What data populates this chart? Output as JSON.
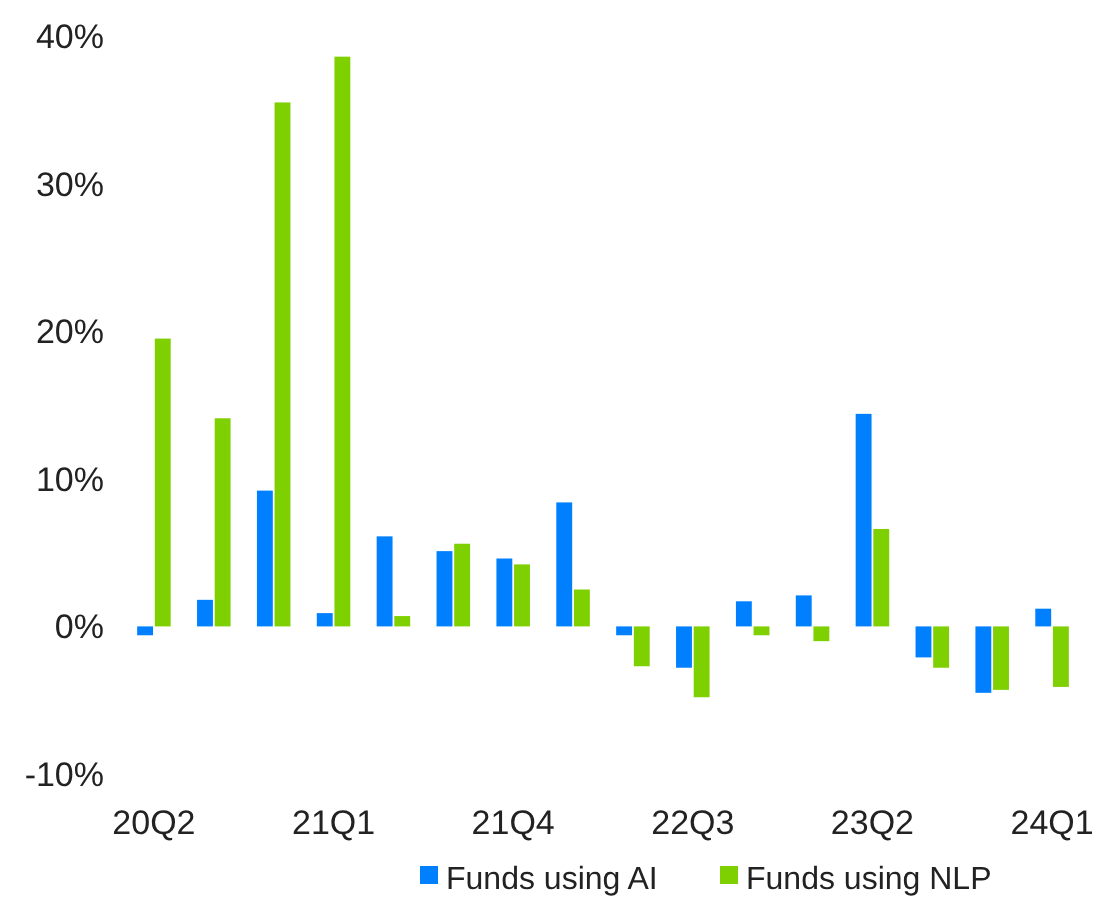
{
  "chart_data": {
    "type": "bar",
    "categories": [
      "20Q2",
      null,
      null,
      "21Q1",
      null,
      null,
      "21Q4",
      null,
      null,
      "22Q3",
      null,
      null,
      "23Q2",
      null,
      null,
      "24Q1"
    ],
    "series": [
      {
        "name": "Funds using AI",
        "color": "#0080ff",
        "values": [
          -0.6,
          1.8,
          9.2,
          0.9,
          6.1,
          5.1,
          4.6,
          8.4,
          -0.6,
          -2.8,
          1.7,
          2.1,
          14.4,
          -2.1,
          -4.5,
          1.2
        ]
      },
      {
        "name": "Funds using NLP",
        "color": "#7ed000",
        "values": [
          19.5,
          14.1,
          35.5,
          38.6,
          0.7,
          5.6,
          4.2,
          2.5,
          -2.7,
          -4.8,
          -0.6,
          -1.0,
          6.6,
          -2.8,
          -4.3,
          -4.1
        ]
      }
    ],
    "ylim": [
      -10,
      40
    ],
    "yticks": [
      {
        "value": -10,
        "label": "-10%"
      },
      {
        "value": 0,
        "label": "0%"
      },
      {
        "value": 10,
        "label": "10%"
      },
      {
        "value": 20,
        "label": "20%"
      },
      {
        "value": 30,
        "label": "30%"
      },
      {
        "value": 40,
        "label": "40%"
      }
    ],
    "grid": false,
    "legend": "bottom"
  }
}
